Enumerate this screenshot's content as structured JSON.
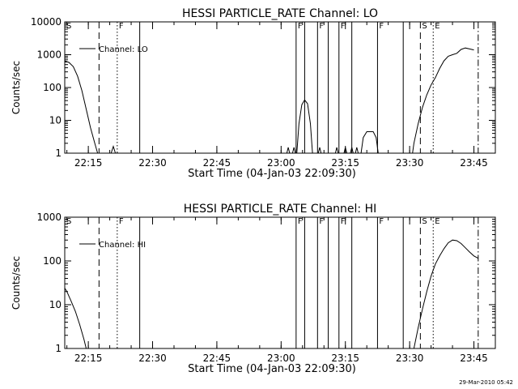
{
  "footer_stamp": "29-Mar-2010 05:42",
  "chart_data": [
    {
      "type": "line",
      "title": "HESSI PARTICLE_RATE Channel: LO",
      "xlabel": "Start Time (04-Jan-03 22:09:30)",
      "ylabel": "Counts/sec",
      "x_unit": "time",
      "xlim": [
        "22:09:30",
        "23:50:00"
      ],
      "xticks": [
        "22:15",
        "22:30",
        "22:45",
        "23:00",
        "23:15",
        "23:30",
        "23:45"
      ],
      "yscale": "log",
      "ylim": [
        1,
        10000
      ],
      "yticks": [
        "1",
        "10",
        "100",
        "1000",
        "10000"
      ],
      "legend": {
        "position": "top-left",
        "entries": [
          "Channel: LO"
        ]
      },
      "series": [
        {
          "name": "Channel: LO",
          "segments": [
            [
              [
                "22:09:30",
                650
              ],
              [
                "22:10:30",
                580
              ],
              [
                "22:11:30",
                430
              ],
              [
                "22:12:30",
                220
              ],
              [
                "22:13:30",
                80
              ],
              [
                "22:14:30",
                22
              ],
              [
                "22:15:30",
                6
              ],
              [
                "22:16:30",
                2
              ],
              [
                "22:17:10",
                1
              ]
            ],
            [
              [
                "22:20:20",
                1
              ],
              [
                "22:20:50",
                1.6
              ],
              [
                "22:21:20",
                1
              ]
            ],
            [
              [
                "23:01:20",
                1
              ],
              [
                "23:01:40",
                1.5
              ],
              [
                "23:02:00",
                1
              ]
            ],
            [
              [
                "23:02:40",
                1
              ],
              [
                "23:03:00",
                1.5
              ],
              [
                "23:03:20",
                1
              ]
            ],
            [
              [
                "23:03:40",
                1
              ],
              [
                "23:04:10",
                8
              ],
              [
                "23:04:50",
                30
              ],
              [
                "23:05:30",
                42
              ],
              [
                "23:06:10",
                32
              ],
              [
                "23:06:50",
                8
              ],
              [
                "23:07:20",
                1
              ]
            ],
            [
              [
                "23:08:40",
                1
              ],
              [
                "23:09:00",
                1.5
              ],
              [
                "23:09:20",
                1
              ]
            ],
            [
              [
                "23:12:40",
                1
              ],
              [
                "23:13:00",
                1.5
              ],
              [
                "23:13:20",
                1
              ]
            ],
            [
              [
                "23:14:40",
                1
              ],
              [
                "23:15:00",
                1.5
              ],
              [
                "23:15:20",
                1
              ]
            ],
            [
              [
                "23:16:10",
                1
              ],
              [
                "23:16:30",
                1.5
              ],
              [
                "23:16:50",
                1
              ]
            ],
            [
              [
                "23:17:20",
                1
              ],
              [
                "23:17:40",
                1.5
              ],
              [
                "23:18:00",
                1
              ]
            ],
            [
              [
                "23:18:40",
                1
              ],
              [
                "23:19:10",
                3
              ],
              [
                "23:20:00",
                4.5
              ],
              [
                "23:21:30",
                4.5
              ],
              [
                "23:22:10",
                3
              ],
              [
                "23:22:40",
                1
              ]
            ],
            [
              [
                "23:30:40",
                1
              ],
              [
                "23:31:00",
                2
              ],
              [
                "23:32:00",
                8
              ],
              [
                "23:33:00",
                25
              ],
              [
                "23:34:00",
                60
              ],
              [
                "23:35:00",
                120
              ],
              [
                "23:36:00",
                200
              ],
              [
                "23:37:00",
                380
              ],
              [
                "23:38:00",
                650
              ],
              [
                "23:39:00",
                900
              ],
              [
                "23:40:00",
                1000
              ],
              [
                "23:41:00",
                1100
              ],
              [
                "23:42:00",
                1450
              ],
              [
                "23:43:00",
                1600
              ],
              [
                "23:44:00",
                1500
              ],
              [
                "23:45:00",
                1400
              ]
            ]
          ]
        }
      ],
      "annotations": [
        {
          "time": "22:09:30",
          "style": "solid",
          "label": "S"
        },
        {
          "time": "22:17:30",
          "style": "dashed",
          "label": ""
        },
        {
          "time": "22:21:45",
          "style": "dotted",
          "label": "F"
        },
        {
          "time": "22:27:00",
          "style": "solid",
          "label": ""
        },
        {
          "time": "23:03:30",
          "style": "solid",
          "label": "F"
        },
        {
          "time": "23:05:30",
          "style": "solid",
          "label": ""
        },
        {
          "time": "23:08:30",
          "style": "solid",
          "label": "F"
        },
        {
          "time": "23:11:00",
          "style": "solid",
          "label": ""
        },
        {
          "time": "23:13:30",
          "style": "solid",
          "label": "F"
        },
        {
          "time": "23:16:30",
          "style": "solid",
          "label": ""
        },
        {
          "time": "23:22:30",
          "style": "solid",
          "label": "F"
        },
        {
          "time": "23:28:30",
          "style": "solid",
          "label": ""
        },
        {
          "time": "23:32:30",
          "style": "dashed",
          "label": "S"
        },
        {
          "time": "23:35:30",
          "style": "dotted",
          "label": "E"
        },
        {
          "time": "23:46:00",
          "style": "dashdot",
          "label": ""
        }
      ]
    },
    {
      "type": "line",
      "title": "HESSI PARTICLE_RATE Channel: HI",
      "xlabel": "Start Time (04-Jan-03 22:09:30)",
      "ylabel": "Counts/sec",
      "x_unit": "time",
      "xlim": [
        "22:09:30",
        "23:50:00"
      ],
      "xticks": [
        "22:15",
        "22:30",
        "22:45",
        "23:00",
        "23:15",
        "23:30",
        "23:45"
      ],
      "yscale": "log",
      "ylim": [
        1,
        1000
      ],
      "yticks": [
        "1",
        "10",
        "100",
        "1000"
      ],
      "legend": {
        "position": "top-left",
        "entries": [
          "Channel: HI"
        ]
      },
      "series": [
        {
          "name": "Channel: HI",
          "segments": [
            [
              [
                "22:09:30",
                24
              ],
              [
                "22:10:00",
                20
              ],
              [
                "22:11:00",
                12
              ],
              [
                "22:12:00",
                7
              ],
              [
                "22:13:00",
                3.5
              ],
              [
                "22:14:00",
                1.6
              ],
              [
                "22:14:30",
                1
              ]
            ],
            [
              [
                "23:31:00",
                1
              ],
              [
                "23:32:00",
                3
              ],
              [
                "23:33:00",
                8
              ],
              [
                "23:34:00",
                20
              ],
              [
                "23:35:00",
                45
              ],
              [
                "23:36:00",
                85
              ],
              [
                "23:37:00",
                130
              ],
              [
                "23:38:00",
                190
              ],
              [
                "23:39:00",
                260
              ],
              [
                "23:40:00",
                300
              ],
              [
                "23:41:00",
                290
              ],
              [
                "23:42:00",
                250
              ],
              [
                "23:43:00",
                200
              ],
              [
                "23:44:00",
                160
              ],
              [
                "23:45:00",
                130
              ],
              [
                "23:46:00",
                115
              ]
            ]
          ]
        }
      ],
      "annotations": [
        {
          "time": "22:09:30",
          "style": "solid",
          "label": "S"
        },
        {
          "time": "22:17:30",
          "style": "dashed",
          "label": ""
        },
        {
          "time": "22:21:45",
          "style": "dotted",
          "label": "F"
        },
        {
          "time": "22:27:00",
          "style": "solid",
          "label": ""
        },
        {
          "time": "23:03:30",
          "style": "solid",
          "label": "F"
        },
        {
          "time": "23:05:30",
          "style": "solid",
          "label": ""
        },
        {
          "time": "23:08:30",
          "style": "solid",
          "label": "F"
        },
        {
          "time": "23:11:00",
          "style": "solid",
          "label": ""
        },
        {
          "time": "23:13:30",
          "style": "solid",
          "label": "F"
        },
        {
          "time": "23:16:30",
          "style": "solid",
          "label": ""
        },
        {
          "time": "23:22:30",
          "style": "solid",
          "label": "F"
        },
        {
          "time": "23:28:30",
          "style": "solid",
          "label": ""
        },
        {
          "time": "23:32:30",
          "style": "dashed",
          "label": "S"
        },
        {
          "time": "23:35:30",
          "style": "dotted",
          "label": "E"
        },
        {
          "time": "23:46:00",
          "style": "dashdot",
          "label": ""
        }
      ]
    }
  ]
}
